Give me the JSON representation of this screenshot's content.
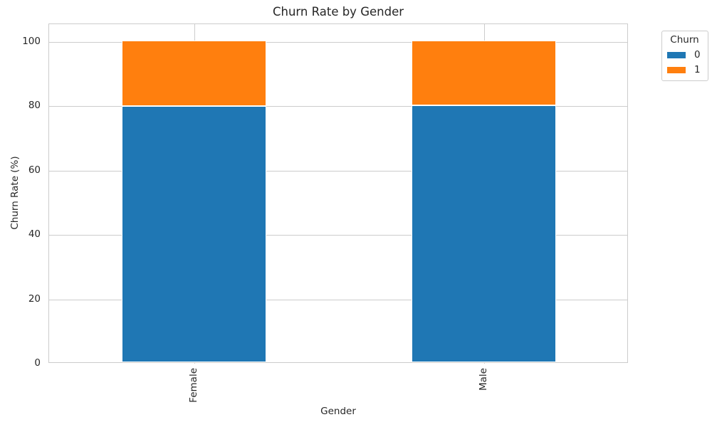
{
  "chart_data": {
    "type": "bar",
    "stacked": true,
    "title": "Churn Rate by Gender",
    "xlabel": "Gender",
    "ylabel": "Churn Rate (%)",
    "categories": [
      "Female",
      "Male"
    ],
    "series": [
      {
        "name": "0",
        "color": "#1f77b4",
        "values": [
          79.7,
          79.9
        ]
      },
      {
        "name": "1",
        "color": "#ff7f0e",
        "values": [
          20.3,
          20.1
        ]
      }
    ],
    "ylim": [
      0,
      105.5
    ],
    "yticks": [
      0,
      20,
      40,
      60,
      80,
      100
    ],
    "grid": true,
    "bar_width_fraction": 0.5,
    "legend": {
      "title": "Churn",
      "position": "upper right outside"
    }
  },
  "colors": {
    "grid": "#cccccc",
    "spine": "#cccccc",
    "text": "#262626",
    "background": "#ffffff"
  }
}
